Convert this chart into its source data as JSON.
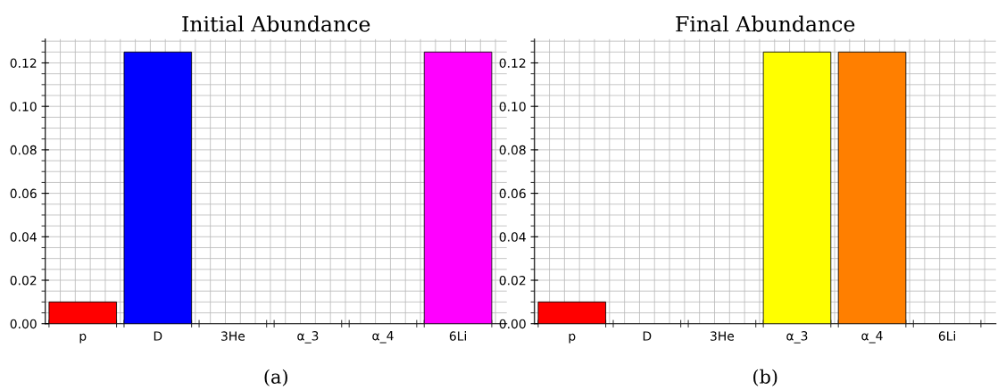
{
  "chart_data": [
    {
      "type": "bar",
      "title": "Initial Abundance",
      "categories": [
        "p",
        "D",
        "3He",
        "α_3",
        "α_4",
        "6Li"
      ],
      "values": [
        0.01,
        0.125,
        0,
        0,
        0,
        0.125
      ],
      "colors": [
        "#ff0000",
        "#0000ff",
        null,
        null,
        null,
        "#ff00ff"
      ],
      "ylim": [
        0,
        0.131
      ],
      "yticks": [
        {
          "value": 0,
          "label": "0.00"
        },
        {
          "value": 0.02,
          "label": "0.02"
        },
        {
          "value": 0.04,
          "label": "0.04"
        },
        {
          "value": 0.06,
          "label": "0.06"
        },
        {
          "value": 0.08,
          "label": "0.08"
        },
        {
          "value": 0.1,
          "label": "0.10"
        },
        {
          "value": 0.12,
          "label": "0.12"
        }
      ],
      "grid": true,
      "annotations": [
        "(a)"
      ]
    },
    {
      "type": "bar",
      "title": "Final Abundance",
      "categories": [
        "p",
        "D",
        "3He",
        "α_3",
        "α_4",
        "6Li"
      ],
      "values": [
        0.01,
        0,
        0,
        0.125,
        0.125,
        0
      ],
      "colors": [
        "#ff0000",
        null,
        null,
        "#ffff00",
        "#ff7f00",
        null
      ],
      "ylim": [
        0,
        0.131
      ],
      "yticks": [
        {
          "value": 0,
          "label": "0.00"
        },
        {
          "value": 0.02,
          "label": "0.02"
        },
        {
          "value": 0.04,
          "label": "0.04"
        },
        {
          "value": 0.06,
          "label": "0.06"
        },
        {
          "value": 0.08,
          "label": "0.08"
        },
        {
          "value": 0.1,
          "label": "0.10"
        },
        {
          "value": 0.12,
          "label": "0.12"
        }
      ],
      "grid": true,
      "annotations": [
        "(b)"
      ]
    }
  ]
}
